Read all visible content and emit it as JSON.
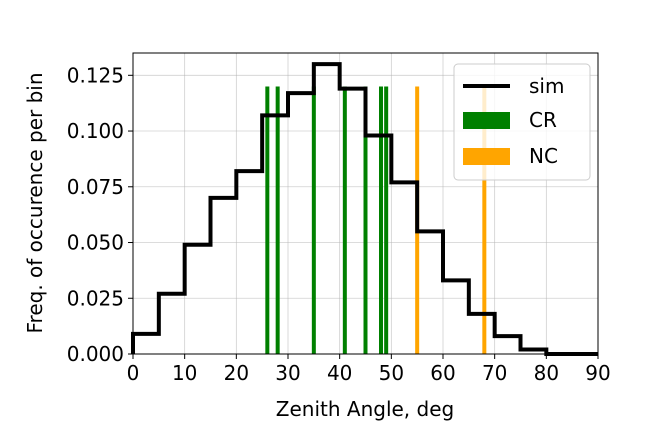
{
  "chart_data": {
    "type": "histogram",
    "xlabel": "Zenith Angle, deg",
    "ylabel": "Freq. of occurence per bin",
    "xlim": [
      0,
      90
    ],
    "ylim": [
      0,
      0.135
    ],
    "x_ticks": [
      "0",
      "10",
      "20",
      "30",
      "40",
      "50",
      "60",
      "70",
      "80",
      "90"
    ],
    "y_ticks": [
      "0.000",
      "0.025",
      "0.050",
      "0.075",
      "0.100",
      "0.125"
    ],
    "grid": true,
    "legend_position": "top-right",
    "series": [
      {
        "name": "sim",
        "kind": "step-histogram",
        "color": "#000000",
        "bin_edges": [
          0,
          5,
          10,
          15,
          20,
          25,
          30,
          35,
          40,
          45,
          50,
          55,
          60,
          65,
          70,
          75,
          80,
          85,
          90
        ],
        "values": [
          0.009,
          0.027,
          0.049,
          0.07,
          0.082,
          0.107,
          0.117,
          0.13,
          0.119,
          0.098,
          0.077,
          0.055,
          0.033,
          0.018,
          0.008,
          0.002,
          0.0,
          0.0
        ]
      },
      {
        "name": "CR",
        "kind": "vertical-lines",
        "color": "#008000",
        "x": [
          26,
          28,
          35,
          41,
          45,
          48,
          49
        ],
        "height": 0.12
      },
      {
        "name": "NC",
        "kind": "vertical-lines",
        "color": "#ffa500",
        "x": [
          55,
          68
        ],
        "height": 0.12
      }
    ]
  }
}
